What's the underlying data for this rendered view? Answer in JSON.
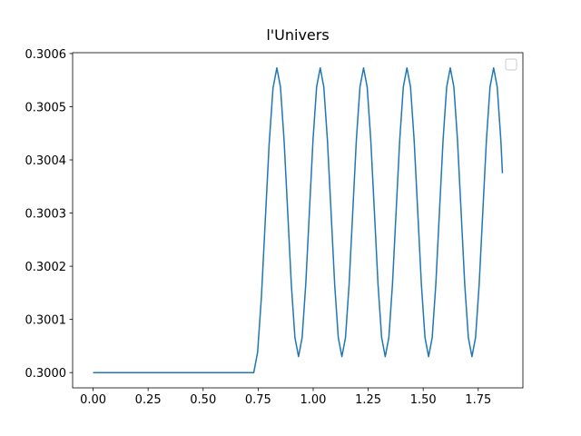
{
  "chart_data": {
    "type": "line",
    "title": "l'Univers",
    "color": "#1f77b4",
    "xlim": [
      -0.093,
      1.953
    ],
    "ylim": [
      0.2999713,
      0.3006016
    ],
    "xticks": [
      {
        "value": 0,
        "label": "0.00"
      },
      {
        "value": 0.25,
        "label": "0.25"
      },
      {
        "value": 0.5,
        "label": "0.50"
      },
      {
        "value": 0.75,
        "label": "0.75"
      },
      {
        "value": 1,
        "label": "1.00"
      },
      {
        "value": 1.25,
        "label": "1.25"
      },
      {
        "value": 1.5,
        "label": "1.50"
      },
      {
        "value": 1.75,
        "label": "1.75"
      }
    ],
    "yticks": [
      {
        "value": 0.3,
        "label": "0.3000"
      },
      {
        "value": 0.3001,
        "label": "0.3001"
      },
      {
        "value": 0.3002,
        "label": "0.3002"
      },
      {
        "value": 0.3003,
        "label": "0.3003"
      },
      {
        "value": 0.3004,
        "label": "0.3004"
      },
      {
        "value": 0.3005,
        "label": "0.3005"
      },
      {
        "value": 0.3006,
        "label": "0.3006"
      }
    ],
    "x": [
      0,
      0.73,
      0.7475,
      0.765,
      0.7825,
      0.8,
      0.8175,
      0.835,
      0.8514,
      0.8678,
      0.8843,
      0.9007,
      0.9171,
      0.9335,
      0.9499,
      0.9663,
      0.9828,
      0.9992,
      1.0156,
      1.032,
      1.0484,
      1.0648,
      1.0813,
      1.0977,
      1.1141,
      1.1305,
      1.1469,
      1.1633,
      1.1798,
      1.1962,
      1.2126,
      1.229,
      1.2454,
      1.2618,
      1.2783,
      1.2947,
      1.3111,
      1.3275,
      1.3439,
      1.3603,
      1.3768,
      1.3932,
      1.4096,
      1.426,
      1.4424,
      1.4588,
      1.4753,
      1.4917,
      1.5081,
      1.5245,
      1.5409,
      1.5573,
      1.5738,
      1.5902,
      1.6066,
      1.623,
      1.6394,
      1.6558,
      1.6723,
      1.6887,
      1.7051,
      1.7215,
      1.7379,
      1.7543,
      1.7708,
      1.7872,
      1.8036,
      1.82,
      1.8364,
      1.8528,
      1.86
    ],
    "values": [
      0.3,
      0.3,
      0.300038,
      0.300143,
      0.300287,
      0.30043,
      0.300535,
      0.300573,
      0.300537,
      0.300437,
      0.300302,
      0.300166,
      0.300066,
      0.30003,
      0.300066,
      0.300166,
      0.300302,
      0.300437,
      0.300537,
      0.300573,
      0.300537,
      0.300437,
      0.300302,
      0.300166,
      0.300066,
      0.30003,
      0.300066,
      0.300166,
      0.300302,
      0.300437,
      0.300537,
      0.300573,
      0.300537,
      0.300437,
      0.300302,
      0.300166,
      0.300066,
      0.30003,
      0.300066,
      0.300166,
      0.300302,
      0.300437,
      0.300537,
      0.300573,
      0.300537,
      0.300437,
      0.300302,
      0.300166,
      0.300066,
      0.30003,
      0.300066,
      0.300166,
      0.300302,
      0.300437,
      0.300537,
      0.300573,
      0.300537,
      0.300437,
      0.300302,
      0.300166,
      0.300066,
      0.30003,
      0.300066,
      0.300166,
      0.300302,
      0.300437,
      0.300537,
      0.300573,
      0.300537,
      0.300437,
      0.300375
    ]
  }
}
